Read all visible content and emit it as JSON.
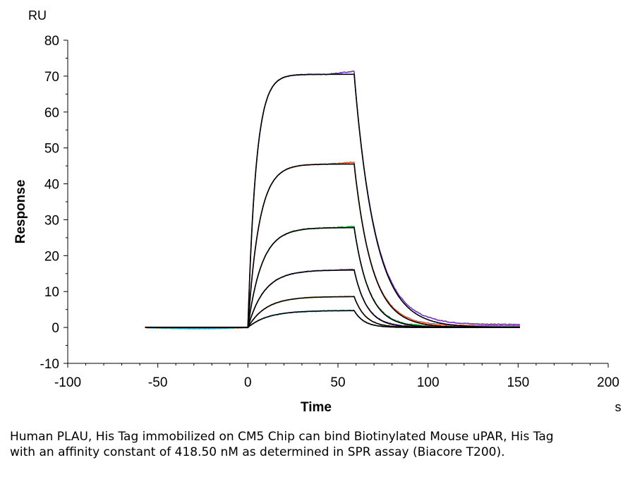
{
  "chart_data": {
    "type": "line",
    "unit_label": "RU",
    "xlabel": "Time",
    "xunit": "s",
    "ylabel": "Response",
    "xlim": [
      -100,
      200
    ],
    "ylim": [
      -10,
      80
    ],
    "xticks": [
      -100,
      -50,
      0,
      50,
      100,
      150,
      200
    ],
    "yticks": [
      -10,
      0,
      10,
      20,
      30,
      40,
      50,
      60,
      70,
      80
    ],
    "grid": false,
    "baseline_start": -57,
    "injection_start": 0,
    "dissociation_start": 59,
    "end_time": 151,
    "series": [
      {
        "plateau": 70.5,
        "k_on": 0.22,
        "k_off": 0.085,
        "color": "#7030c8",
        "residual": 0.8
      },
      {
        "plateau": 45.5,
        "k_on": 0.16,
        "k_off": 0.1,
        "color": "#e05030",
        "residual": 0.5
      },
      {
        "plateau": 27.8,
        "k_on": 0.13,
        "k_off": 0.12,
        "color": "#20a040",
        "residual": 0.3
      },
      {
        "plateau": 16.0,
        "k_on": 0.11,
        "k_off": 0.14,
        "color": "#8040b0",
        "residual": 0.2
      },
      {
        "plateau": 8.6,
        "k_on": 0.1,
        "k_off": 0.16,
        "color": "#e09020",
        "residual": 0.1
      },
      {
        "plateau": 4.7,
        "k_on": 0.09,
        "k_off": 0.18,
        "color": "#20a0c0",
        "residual": 0.05
      }
    ]
  },
  "caption": "Human PLAU, His Tag immobilized on CM5 Chip can bind Biotinylated Mouse uPAR, His Tag with an affinity constant of 418.50 nM as determined in SPR assay (Biacore T200)."
}
